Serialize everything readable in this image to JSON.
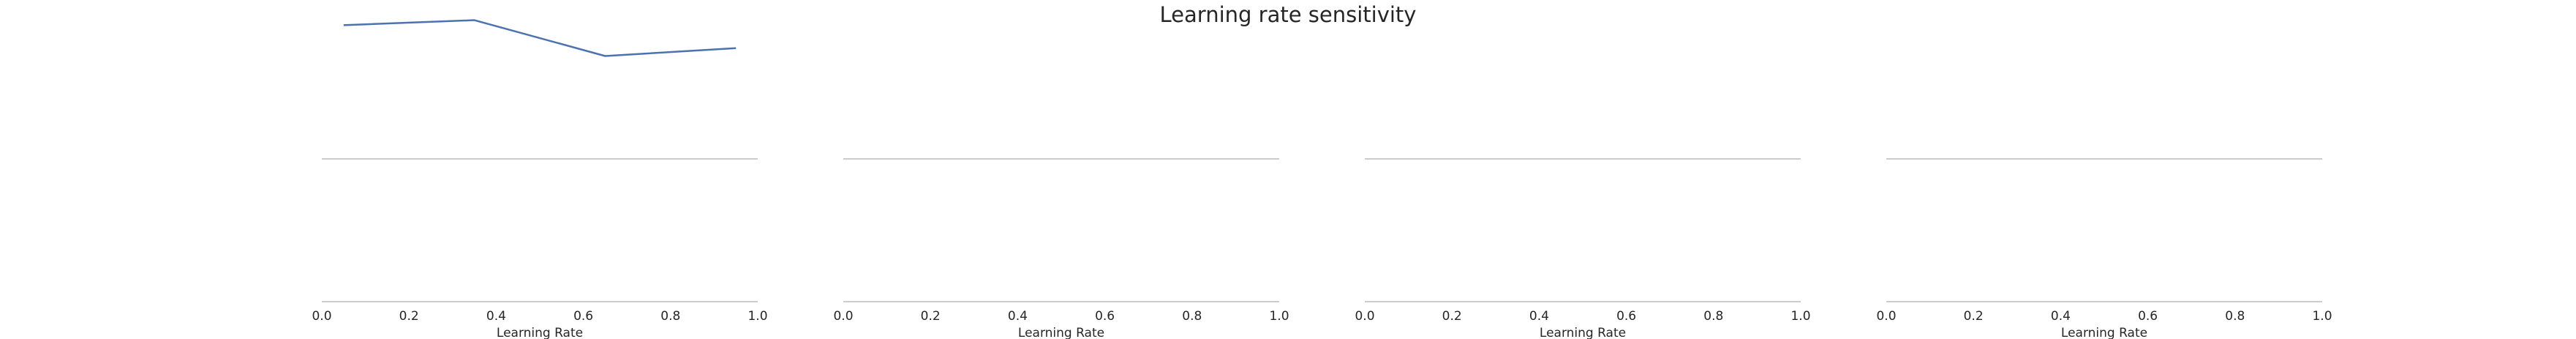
{
  "figure": {
    "title": "Learning rate sensitivity"
  },
  "chart_data": [
    {
      "type": "line",
      "title": "",
      "xlabel": "Learning Rate",
      "ylabel": "",
      "xlim": [
        0.0,
        1.0
      ],
      "xticks": [
        "0.0",
        "0.2",
        "0.4",
        "0.6",
        "0.8",
        "1.0"
      ],
      "series": [
        {
          "x": [
            0.05,
            0.35,
            0.65,
            0.95
          ],
          "y": [
            0.918,
            0.952,
            0.706,
            0.76
          ],
          "color": "#4c72b0"
        }
      ],
      "ylim": [
        0,
        1.0
      ],
      "grid": false
    },
    {
      "type": "line",
      "title": "",
      "xlabel": "Learning Rate",
      "ylabel": "",
      "xlim": [
        0.0,
        1.0
      ],
      "xticks": [
        "0.0",
        "0.2",
        "0.4",
        "0.6",
        "0.8",
        "1.0"
      ],
      "series": [],
      "grid": false
    },
    {
      "type": "line",
      "title": "",
      "xlabel": "Learning Rate",
      "ylabel": "",
      "xlim": [
        0.0,
        1.0
      ],
      "xticks": [
        "0.0",
        "0.2",
        "0.4",
        "0.6",
        "0.8",
        "1.0"
      ],
      "series": [],
      "grid": false
    },
    {
      "type": "line",
      "title": "",
      "xlabel": "Learning Rate",
      "ylabel": "",
      "xlim": [
        0.0,
        1.0
      ],
      "xticks": [
        "0.0",
        "0.2",
        "0.4",
        "0.6",
        "0.8",
        "1.0"
      ],
      "series": [],
      "grid": false
    }
  ]
}
